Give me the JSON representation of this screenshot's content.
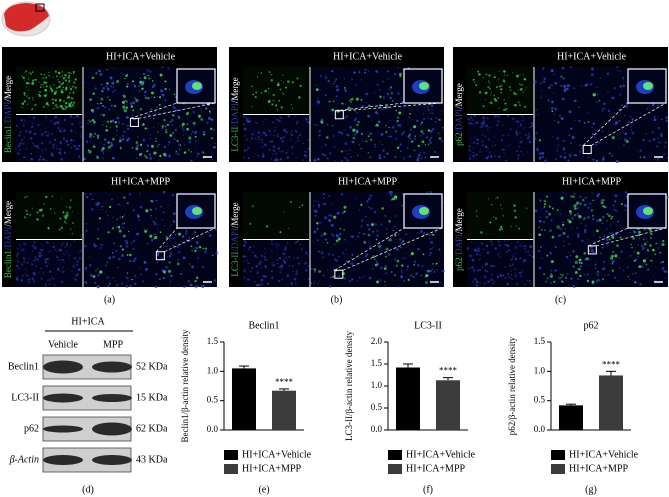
{
  "panels": [
    {
      "label": "(a)",
      "marker": "Beclin1",
      "dapi": "/DAPI",
      "merge": "/Merge",
      "conditions": [
        "HI+ICA+Vehicle",
        "HI+ICA+MPP"
      ]
    },
    {
      "label": "(b)",
      "marker": "LC3-II",
      "dapi": "/DAPI",
      "merge": "/Merge",
      "conditions": [
        "HI+ICA+Vehicle",
        "HI+ICA+MPP"
      ]
    },
    {
      "label": "(c)",
      "marker": "p62",
      "dapi": "/DAPI",
      "merge": "/Merge",
      "conditions": [
        "HI+ICA+Vehicle",
        "HI+ICA+MPP"
      ]
    }
  ],
  "western_blot": {
    "label": "(d)",
    "group": "HI+ICA",
    "lanes": [
      "Vehicle",
      "MPP"
    ],
    "rows": [
      {
        "protein": "Beclin1",
        "size": "52 KDa"
      },
      {
        "protein": "LC3-II",
        "size": "15 KDa"
      },
      {
        "protein": "p62",
        "size": "62 KDa"
      },
      {
        "protein": "β-Actin",
        "size": "43 KDa"
      }
    ]
  },
  "chart_data": [
    {
      "type": "bar",
      "label": "(e)",
      "title": "Beclin1",
      "y_label": "Beclin1/β-actin relative density",
      "ylim": [
        0,
        1.5
      ],
      "yticks": [
        {
          "value": 0,
          "label": "0.0"
        },
        0.5,
        {
          "value": 1,
          "label": "1.0"
        },
        1.5
      ],
      "series": [
        {
          "name": "HI+ICA+Vehicle",
          "color": "#000000",
          "values": [
            1.05
          ],
          "errors": [
            0.04
          ]
        },
        {
          "name": "HI+ICA+MPP",
          "color": "#3c3c3c",
          "values": [
            0.67
          ],
          "errors": [
            0.03
          ],
          "annotation": "****"
        }
      ]
    },
    {
      "type": "bar",
      "label": "(f)",
      "title": "LC3-II",
      "y_label": "LC3-II/β-actin relative density",
      "ylim": [
        0,
        2
      ],
      "yticks": [
        {
          "value": 0,
          "label": "0.0"
        },
        0.5,
        {
          "value": 1,
          "label": "1.0"
        },
        1.5,
        {
          "value": 2,
          "label": "2.0"
        }
      ],
      "series": [
        {
          "name": "HI+ICA+Vehicle",
          "color": "#000000",
          "values": [
            1.42
          ],
          "errors": [
            0.08
          ]
        },
        {
          "name": "HI+ICA+MPP",
          "color": "#3c3c3c",
          "values": [
            1.13
          ],
          "errors": [
            0.06
          ],
          "annotation": "****"
        }
      ]
    },
    {
      "type": "bar",
      "label": "(g)",
      "title": "p62",
      "y_label": "p62/β-actin relative density",
      "ylim": [
        0,
        1.5
      ],
      "yticks": [
        {
          "value": 0,
          "label": "0.0"
        },
        0.5,
        {
          "value": 1,
          "label": "1.0"
        },
        1.5
      ],
      "series": [
        {
          "name": "HI+ICA+Vehicle",
          "color": "#000000",
          "values": [
            0.42
          ],
          "errors": [
            0.02
          ]
        },
        {
          "name": "HI+ICA+MPP",
          "color": "#3c3c3c",
          "values": [
            0.93
          ],
          "errors": [
            0.07
          ],
          "annotation": "****"
        }
      ]
    }
  ]
}
